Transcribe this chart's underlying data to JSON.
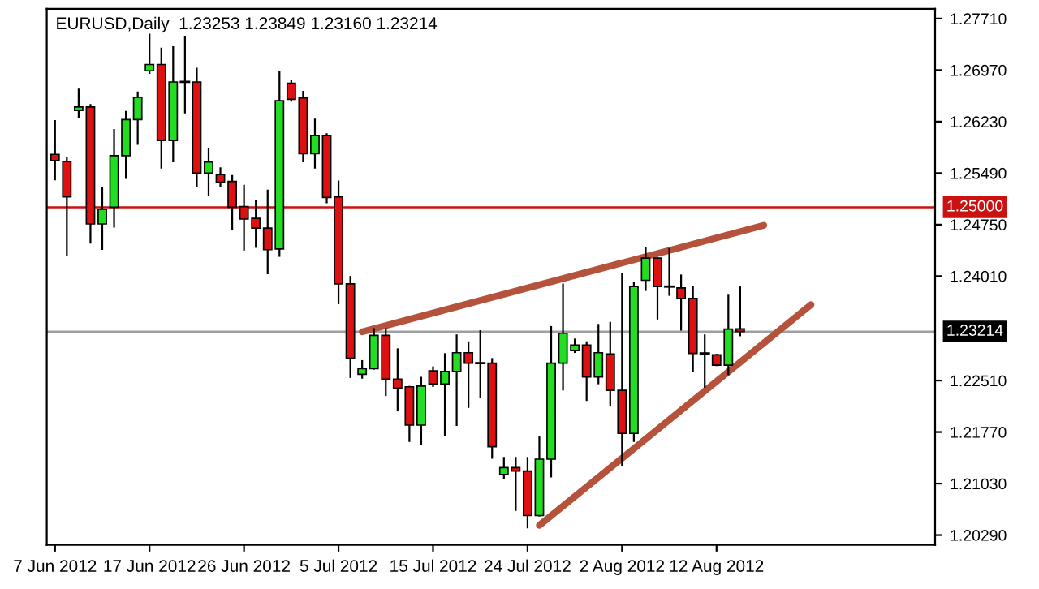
{
  "chart_data": {
    "type": "candlestick",
    "title": "EURUSD,Daily  1.23253 1.23849 1.23160 1.23214",
    "categories": [
      "7 Jun 2012",
      null,
      null,
      null,
      null,
      null,
      null,
      null,
      "17 Jun 2012",
      null,
      null,
      null,
      null,
      null,
      null,
      null,
      "26 Jun 2012",
      null,
      null,
      null,
      null,
      null,
      null,
      null,
      "5 Jul 2012",
      null,
      null,
      null,
      null,
      null,
      null,
      null,
      "15 Jul 2012",
      null,
      null,
      null,
      null,
      null,
      null,
      null,
      "24 Jul 2012",
      null,
      null,
      null,
      null,
      null,
      null,
      null,
      "2 Aug 2012",
      null,
      null,
      null,
      null,
      null,
      null,
      null,
      "12 Aug 2012",
      null,
      null,
      null,
      null,
      null,
      null,
      null,
      null,
      null,
      null,
      null,
      null,
      null,
      null,
      null,
      null,
      null,
      null
    ],
    "ohlc": [
      [
        1.2576,
        1.2624,
        1.254,
        1.2567
      ],
      [
        1.2566,
        1.2571,
        1.2432,
        1.2515
      ],
      [
        1.2639,
        1.2669,
        1.263,
        1.2644
      ],
      [
        1.2644,
        1.2647,
        1.2449,
        1.2476
      ],
      [
        1.2476,
        1.2528,
        1.244,
        1.2497
      ],
      [
        1.25,
        1.2611,
        1.2472,
        1.2574
      ],
      [
        1.2574,
        1.2637,
        1.2542,
        1.2626
      ],
      [
        1.2626,
        1.2665,
        1.2591,
        1.2658
      ],
      [
        1.2696,
        1.2748,
        1.2693,
        1.2705
      ],
      [
        1.2705,
        1.2728,
        1.2557,
        1.2596
      ],
      [
        1.2596,
        1.273,
        1.2566,
        1.268
      ],
      [
        1.268,
        1.2745,
        1.2636,
        1.268
      ],
      [
        1.268,
        1.2699,
        1.253,
        1.2549
      ],
      [
        1.2549,
        1.2583,
        1.2518,
        1.2565
      ],
      [
        1.2547,
        1.2556,
        1.253,
        1.2536
      ],
      [
        1.2537,
        1.2545,
        1.2469,
        1.25
      ],
      [
        1.2501,
        1.2531,
        1.2439,
        1.2483
      ],
      [
        1.2484,
        1.2509,
        1.2443,
        1.247
      ],
      [
        1.247,
        1.2524,
        1.2405,
        1.2439
      ],
      [
        1.244,
        1.2694,
        1.243,
        1.2653
      ],
      [
        1.2678,
        1.2681,
        1.2653,
        1.2655
      ],
      [
        1.2657,
        1.2666,
        1.2566,
        1.2577
      ],
      [
        1.2577,
        1.2626,
        1.2557,
        1.2603
      ],
      [
        1.2603,
        1.2605,
        1.2507,
        1.2514
      ],
      [
        1.2515,
        1.2537,
        1.2362,
        1.239
      ],
      [
        1.239,
        1.24,
        1.2256,
        1.2283
      ],
      [
        1.226,
        1.2279,
        1.2255,
        1.2268
      ],
      [
        1.2268,
        1.2325,
        1.2268,
        1.2316
      ],
      [
        1.2316,
        1.2325,
        1.223,
        1.2253
      ],
      [
        1.2253,
        1.2296,
        1.2208,
        1.224
      ],
      [
        1.2242,
        1.2242,
        1.2164,
        1.2187
      ],
      [
        1.2187,
        1.2255,
        1.2159,
        1.2243
      ],
      [
        1.2265,
        1.227,
        1.2243,
        1.2246
      ],
      [
        1.2246,
        1.2289,
        1.2172,
        1.2264
      ],
      [
        1.2264,
        1.2316,
        1.2187,
        1.2291
      ],
      [
        1.2291,
        1.2306,
        1.2213,
        1.2276
      ],
      [
        1.2276,
        1.2322,
        1.2227,
        1.2276
      ],
      [
        1.2276,
        1.2282,
        1.214,
        1.2156
      ],
      [
        1.2116,
        1.214,
        1.2111,
        1.2126
      ],
      [
        1.2126,
        1.214,
        1.2065,
        1.2121
      ],
      [
        1.2121,
        1.214,
        1.204,
        1.2057
      ],
      [
        1.2057,
        1.217,
        1.2057,
        1.2138
      ],
      [
        1.2138,
        1.2328,
        1.2113,
        1.2276
      ],
      [
        1.2276,
        1.2389,
        1.2238,
        1.2319
      ],
      [
        1.2294,
        1.231,
        1.2292,
        1.2302
      ],
      [
        1.2302,
        1.2306,
        1.2223,
        1.2256
      ],
      [
        1.2256,
        1.2331,
        1.2247,
        1.2291
      ],
      [
        1.2289,
        1.2334,
        1.2215,
        1.2237
      ],
      [
        1.2237,
        1.2404,
        1.213,
        1.2175
      ],
      [
        1.2175,
        1.2391,
        1.2164,
        1.2386
      ],
      [
        1.2395,
        1.2441,
        1.2381,
        1.2427
      ],
      [
        1.2427,
        1.2427,
        1.234,
        1.2386
      ],
      [
        1.2386,
        1.244,
        1.2374,
        1.2386
      ],
      [
        1.2384,
        1.2402,
        1.2324,
        1.2369
      ],
      [
        1.2369,
        1.2386,
        1.2265,
        1.229
      ],
      [
        1.229,
        1.2316,
        1.2242,
        1.229
      ],
      [
        1.2288,
        1.2288,
        1.2273,
        1.2273
      ],
      [
        1.2273,
        1.2373,
        1.226,
        1.2325
      ],
      [
        1.23253,
        1.23849,
        1.2316,
        1.23214
      ],
      null,
      null,
      null,
      null,
      null,
      null,
      null,
      null,
      null,
      null,
      null,
      null,
      null,
      null,
      null,
      null
    ],
    "colors": [
      "#dd1111",
      "#dd1111",
      "#22dd22",
      "#dd1111",
      "#22dd22",
      "#22dd22",
      "#22dd22",
      "#22dd22",
      "#22dd22",
      "#dd1111",
      "#22dd22",
      "#000000",
      "#dd1111",
      "#22dd22",
      "#dd1111",
      "#dd1111",
      "#dd1111",
      "#dd1111",
      "#dd1111",
      "#22dd22",
      "#dd1111",
      "#dd1111",
      "#22dd22",
      "#dd1111",
      "#dd1111",
      "#dd1111",
      "#22dd22",
      "#22dd22",
      "#dd1111",
      "#dd1111",
      "#dd1111",
      "#22dd22",
      "#dd1111",
      "#22dd22",
      "#22dd22",
      "#dd1111",
      "#000000",
      "#dd1111",
      "#22dd22",
      "#dd1111",
      "#dd1111",
      "#22dd22",
      "#22dd22",
      "#22dd22",
      "#22dd22",
      "#dd1111",
      "#22dd22",
      "#dd1111",
      "#dd1111",
      "#22dd22",
      "#22dd22",
      "#dd1111",
      "#000000",
      "#dd1111",
      "#dd1111",
      "#000000",
      "#dd1111",
      "#22dd22",
      "#dd1111",
      null,
      null,
      null,
      null,
      null,
      null,
      null,
      null,
      null,
      null,
      null,
      null,
      null,
      null,
      null,
      null
    ],
    "series": [
      {
        "type": "line",
        "color": "#b5523b",
        "values": [
          null,
          null,
          null,
          null,
          null,
          null,
          null,
          null,
          null,
          null,
          null,
          null,
          null,
          null,
          null,
          null,
          null,
          null,
          null,
          null,
          null,
          null,
          null,
          null,
          null,
          null,
          1.2321,
          null,
          null,
          null,
          null,
          null,
          null,
          null,
          null,
          null,
          null,
          null,
          null,
          null,
          null,
          null,
          null,
          null,
          null,
          null,
          null,
          null,
          null,
          null,
          null,
          null,
          null,
          null,
          null,
          null,
          null,
          null,
          null,
          null,
          1.2474,
          null,
          null,
          null,
          null,
          null,
          null,
          null,
          null,
          null,
          null,
          null,
          null,
          null,
          null
        ]
      },
      {
        "type": "line",
        "color": "#b5523b",
        "values": [
          null,
          null,
          null,
          null,
          null,
          null,
          null,
          null,
          null,
          null,
          null,
          null,
          null,
          null,
          null,
          null,
          null,
          null,
          null,
          null,
          null,
          null,
          null,
          null,
          null,
          null,
          null,
          null,
          null,
          null,
          null,
          null,
          null,
          null,
          null,
          null,
          null,
          null,
          null,
          null,
          null,
          1.2043,
          null,
          null,
          null,
          null,
          null,
          null,
          null,
          null,
          null,
          null,
          null,
          null,
          null,
          null,
          null,
          null,
          null,
          null,
          null,
          null,
          null,
          null,
          1.236,
          null,
          null,
          null,
          null,
          null,
          null,
          null,
          null,
          null,
          null
        ]
      }
    ],
    "ylim": [
      1.2015,
      1.2785
    ],
    "yticks": [
      {
        "value": 1.2771,
        "label": "1.27710"
      },
      {
        "value": 1.2697,
        "label": "1.26970"
      },
      {
        "value": 1.2623,
        "label": "1.26230"
      },
      {
        "value": 1.2549,
        "label": "1.25490"
      },
      {
        "value": 1.2475,
        "label": "1.24750"
      },
      {
        "value": 1.2401,
        "label": "1.24010"
      },
      {
        "value": 1.2251,
        "label": "1.22510"
      },
      {
        "value": 1.2177,
        "label": "1.21770"
      },
      {
        "value": 1.2103,
        "label": "1.21030"
      },
      {
        "value": 1.2029,
        "label": "1.20290"
      }
    ],
    "ref_lines": [
      {
        "axis": "y",
        "value": 1.25,
        "label": "1.25000",
        "color": "#cc1111"
      },
      {
        "axis": "y",
        "value": 1.23214,
        "label": "1.23214",
        "color": "#a0a0a0"
      }
    ],
    "grid": false,
    "legend": false
  }
}
